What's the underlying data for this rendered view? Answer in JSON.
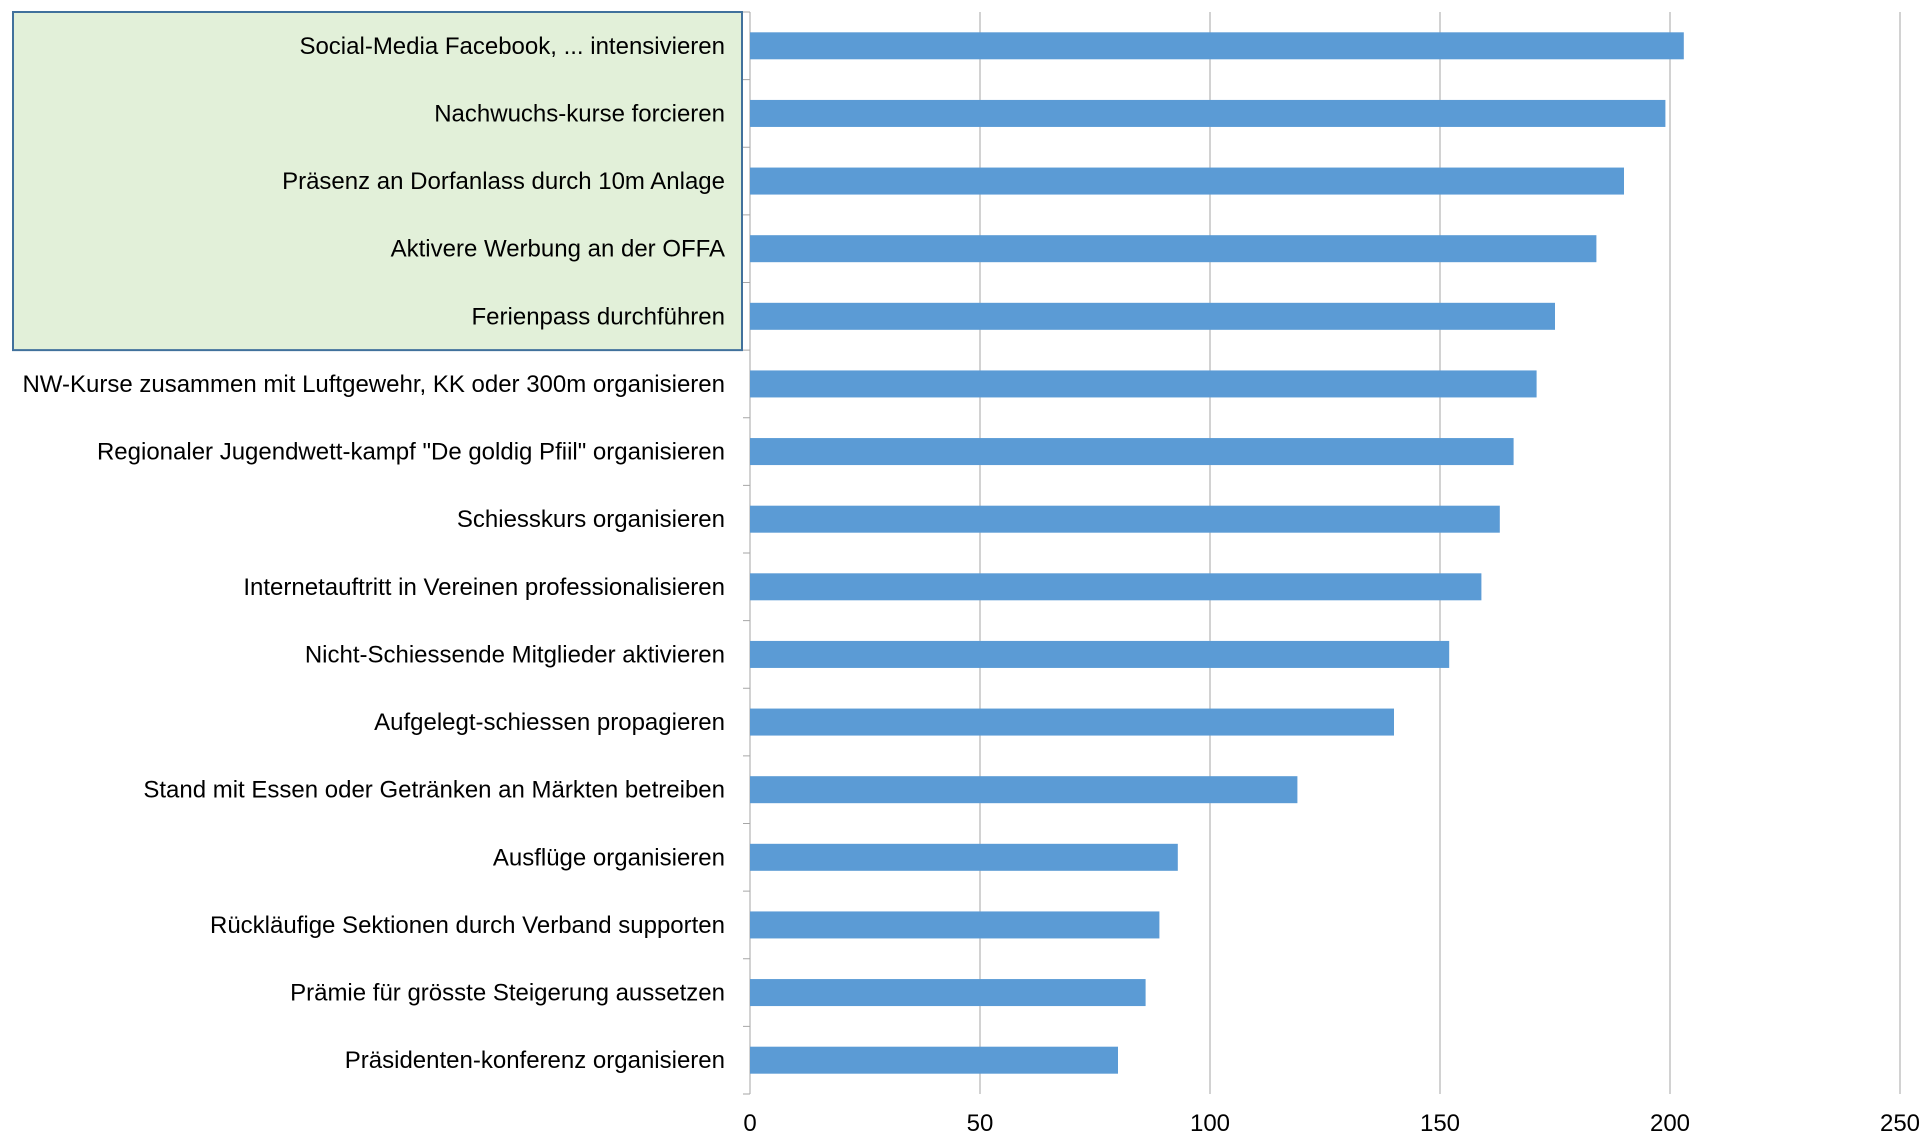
{
  "chart_data": {
    "type": "bar",
    "orientation": "horizontal",
    "categories": [
      "Social-Media Facebook, ... intensivieren",
      "Nachwuchs-kurse forcieren",
      "Präsenz an Dorfanlass durch 10m Anlage",
      "Aktivere Werbung an der OFFA",
      "Ferienpass durchführen",
      "NW-Kurse zusammen mit Luftgewehr, KK oder 300m organisieren",
      "Regionaler Jugendwett-kampf \"De goldig Pfiil\" organisieren",
      "Schiesskurs organisieren",
      "Internetauftritt in Vereinen professionalisieren",
      "Nicht-Schiessende Mitglieder aktivieren",
      "Aufgelegt-schiessen propagieren",
      "Stand mit Essen oder Getränken an Märkten betreiben",
      "Ausflüge organisieren",
      "Rückläufige Sektionen durch Verband supporten",
      "Prämie für grösste Steigerung aussetzen",
      "Präsidenten-konferenz organisieren"
    ],
    "values": [
      203,
      199,
      190,
      184,
      175,
      171,
      166,
      163,
      159,
      152,
      140,
      119,
      93,
      89,
      86,
      80
    ],
    "xlim": [
      0,
      250
    ],
    "xticks": [
      "0",
      "50",
      "100",
      "150",
      "200",
      "250"
    ],
    "grid": "vertical",
    "title": "",
    "xlabel": "",
    "ylabel": "",
    "highlight_count": 5,
    "colors": {
      "bar": "#5B9BD5",
      "grid": "#A6A6A6",
      "highlight_fill": "#E2F0D9",
      "highlight_border": "#41719C"
    }
  }
}
